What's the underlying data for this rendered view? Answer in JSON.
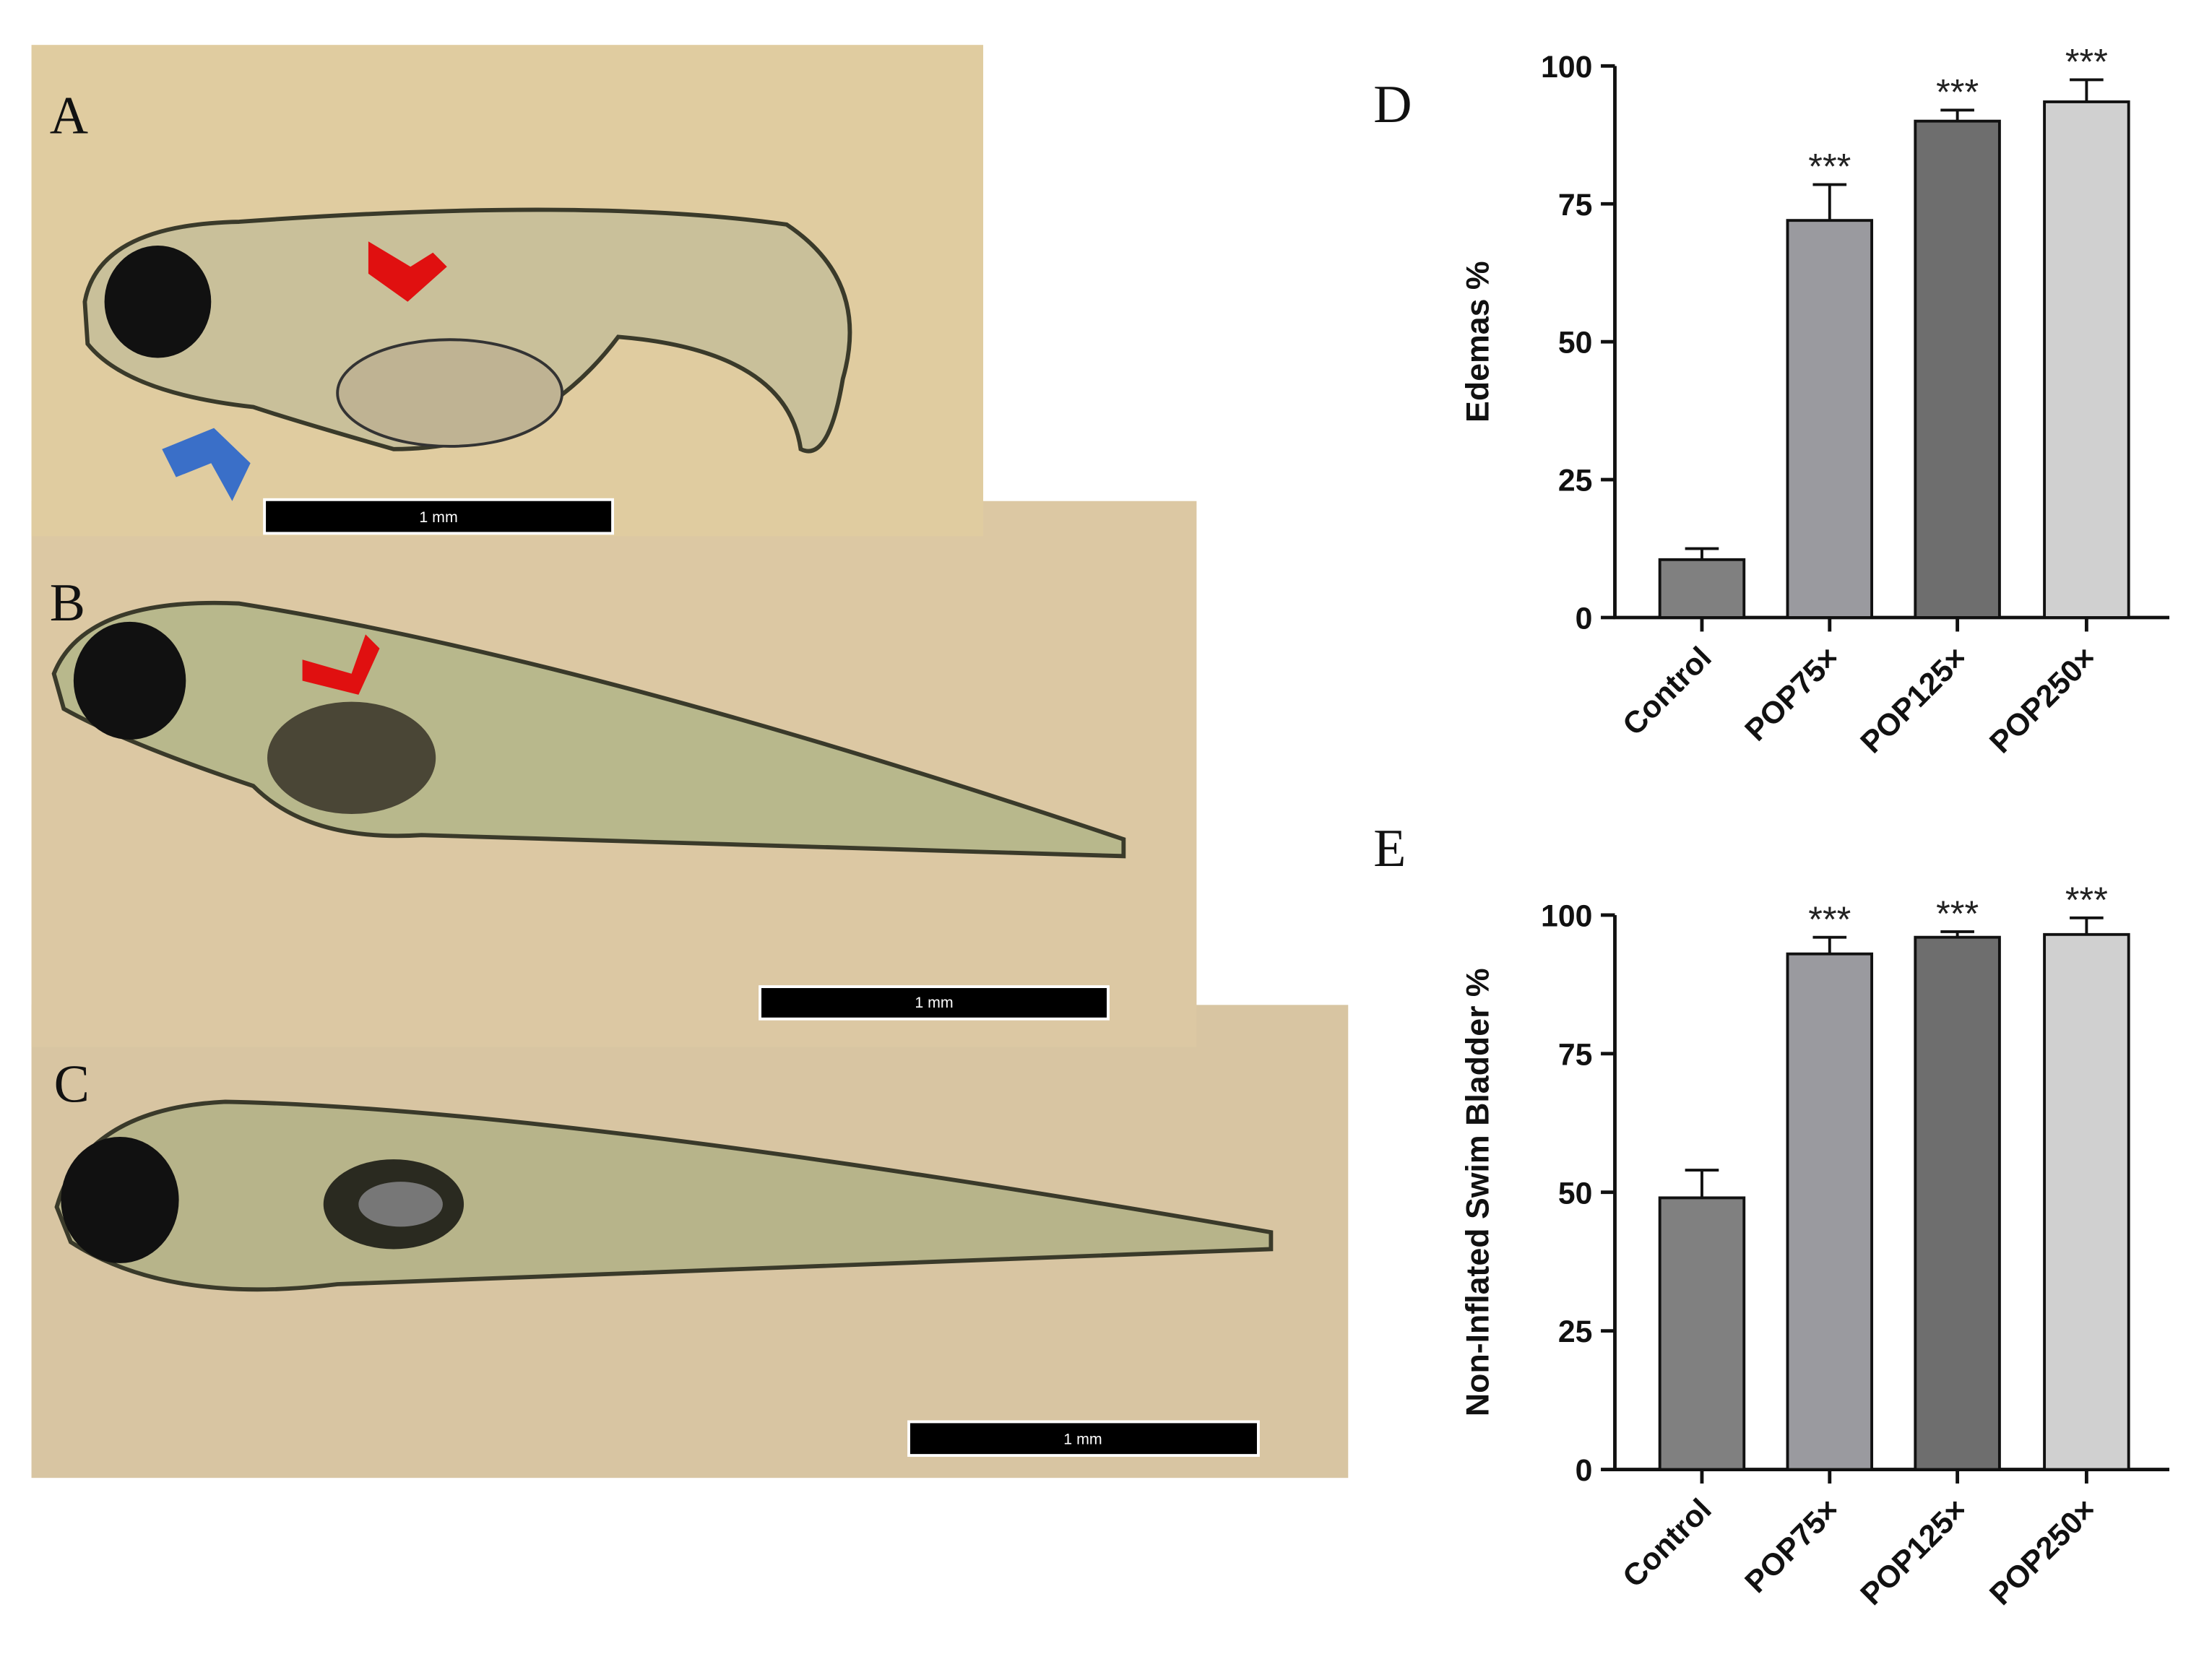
{
  "panels": {
    "A": {
      "label": "A",
      "scale_bar": "1 mm"
    },
    "B": {
      "label": "B",
      "scale_bar": "1 mm"
    },
    "C": {
      "label": "C",
      "scale_bar": "1 mm"
    }
  },
  "chart_data": [
    {
      "type": "bar",
      "panel_label": "D",
      "y_label": "Edemas %",
      "categories": [
        "Control",
        "POP75×",
        "POP125×",
        "POP250×"
      ],
      "values": [
        10.5,
        72,
        90,
        93.5
      ],
      "errors": [
        2,
        6.5,
        2,
        4
      ],
      "annotations": [
        null,
        "***",
        "***",
        "***"
      ],
      "colors": [
        "#808080",
        "#9a9a9f",
        "#6e6e6e",
        "#d0d0d0"
      ],
      "ylim": [
        0,
        100
      ],
      "yticks": [
        0,
        25,
        50,
        75,
        100
      ]
    },
    {
      "type": "bar",
      "panel_label": "E",
      "y_label": "Non-Inflated Swim Bladder  %",
      "categories": [
        "Control",
        "POP75×",
        "POP125×",
        "POP250×"
      ],
      "values": [
        49,
        93,
        96,
        96.5
      ],
      "errors": [
        5,
        3,
        1,
        3
      ],
      "annotations": [
        null,
        "***",
        "***",
        "***"
      ],
      "colors": [
        "#808080",
        "#9a9a9f",
        "#6e6e6e",
        "#d0d0d0"
      ],
      "ylim": [
        0,
        100
      ],
      "yticks": [
        0,
        25,
        50,
        75,
        100
      ]
    }
  ]
}
